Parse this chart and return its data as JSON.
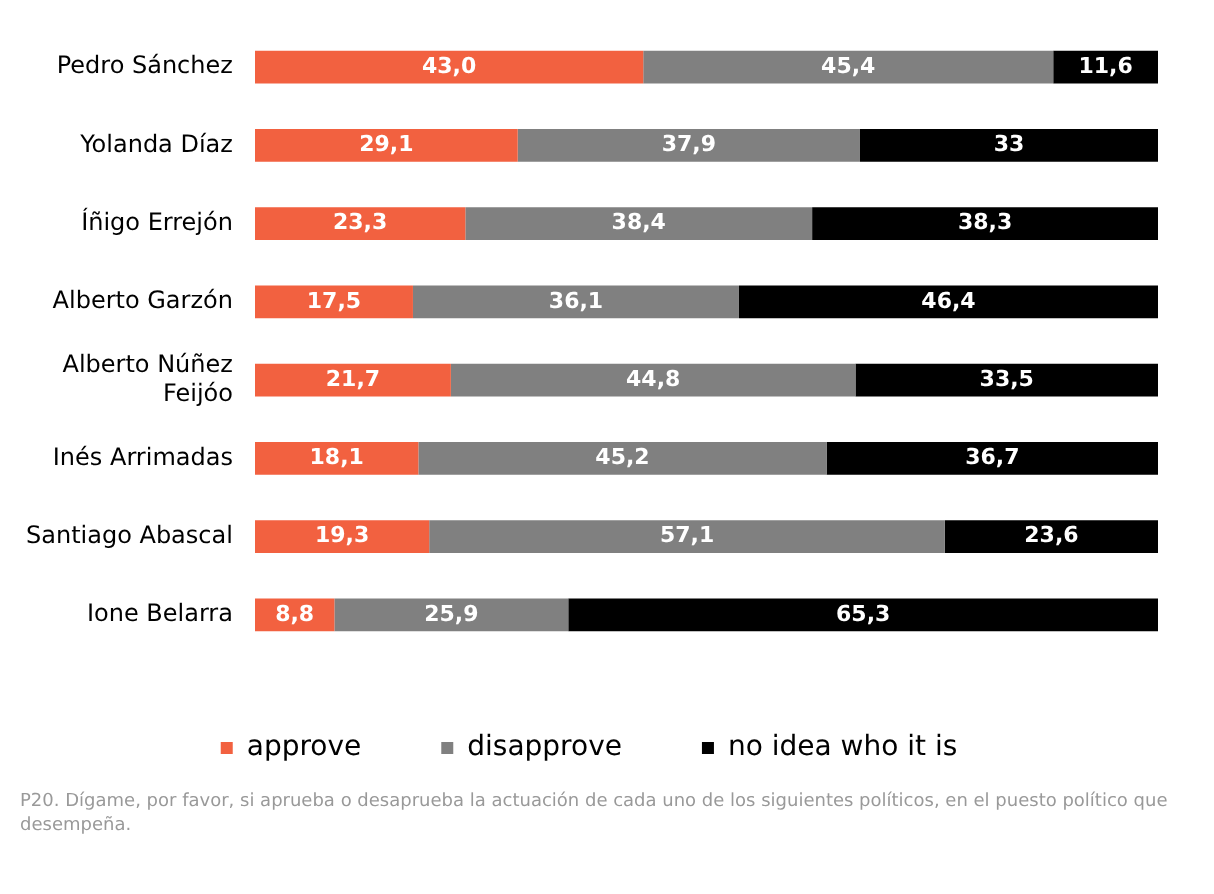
{
  "chart_data": {
    "type": "bar",
    "orientation": "horizontal",
    "stacked": true,
    "categories": [
      "Pedro Sánchez",
      "Yolanda Díaz",
      "Íñigo Errejón",
      "Alberto Garzón",
      "Alberto Núñez Feijóo",
      "Inés Arrimadas",
      "Santiago Abascal",
      "Ione Belarra"
    ],
    "series": [
      {
        "name": "approve",
        "color": "#f26140",
        "values": [
          43.0,
          29.1,
          23.3,
          17.5,
          21.7,
          18.1,
          19.3,
          8.8
        ],
        "value_labels": [
          "43,0",
          "29,1",
          "23,3",
          "17,5",
          "21,7",
          "18,1",
          "19,3",
          "8,8"
        ]
      },
      {
        "name": "disapprove",
        "color": "#808080",
        "values": [
          45.4,
          37.9,
          38.4,
          36.1,
          44.8,
          45.2,
          57.1,
          25.9
        ],
        "value_labels": [
          "45,4",
          "37,9",
          "38,4",
          "36,1",
          "44,8",
          "45,2",
          "57,1",
          "25,9"
        ]
      },
      {
        "name": "no idea who it is",
        "color": "#000000",
        "values": [
          11.6,
          33,
          38.3,
          46.4,
          33.5,
          36.7,
          23.6,
          65.3
        ],
        "value_labels": [
          "11,6",
          "33",
          "38,3",
          "46,4",
          "33,5",
          "36,7",
          "23,6",
          "65,3"
        ]
      }
    ],
    "xlim": [
      0,
      100
    ],
    "tick_labels": "y",
    "legend": "bottom",
    "annotations": [
      "P20. Dígame, por favor, si aprueba o desaprueba la actuación de cada uno de los siguientes políticos, en el puesto político que desempeña."
    ]
  }
}
